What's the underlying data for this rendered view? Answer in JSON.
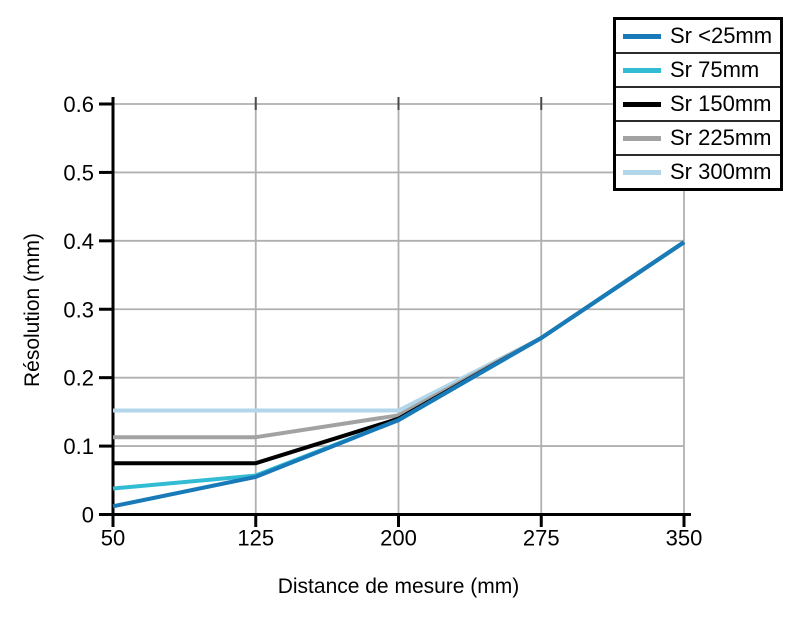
{
  "figure": {
    "background": "#ffffff"
  },
  "chart_data": {
    "type": "line",
    "title": "",
    "xlabel": "Distance de mesure (mm)",
    "ylabel": "Résolution (mm)",
    "xlim": [
      50,
      350
    ],
    "ylim": [
      0,
      0.6
    ],
    "x_ticks": [
      50,
      125,
      200,
      275,
      350
    ],
    "y_ticks": [
      0,
      0.1,
      0.2,
      0.3,
      0.4,
      0.5,
      0.6
    ],
    "grid": true,
    "legend_position": "top-right",
    "x": [
      50,
      125,
      200,
      275,
      350
    ],
    "series": [
      {
        "name": "Sr <25mm",
        "color": "#187ab8",
        "values": [
          0.012,
          0.055,
          0.138,
          0.258,
          0.398
        ]
      },
      {
        "name": "Sr 75mm",
        "color": "#31bcd4",
        "values": [
          0.038,
          0.057,
          0.138,
          0.258,
          0.398
        ]
      },
      {
        "name": "Sr 150mm",
        "color": "#000000",
        "values": [
          0.075,
          0.075,
          0.14,
          0.258,
          0.398
        ]
      },
      {
        "name": "Sr 225mm",
        "color": "#a2a2a2",
        "values": [
          0.113,
          0.113,
          0.145,
          0.258,
          0.398
        ]
      },
      {
        "name": "Sr 300mm",
        "color": "#b2d6ea",
        "values": [
          0.152,
          0.152,
          0.152,
          0.258,
          0.398
        ]
      }
    ],
    "colors": {
      "axis": "#000000",
      "gridline": "#b0b0b0",
      "gridline_top_tick": "#4a4a4a",
      "tick_label": "#000000"
    }
  }
}
